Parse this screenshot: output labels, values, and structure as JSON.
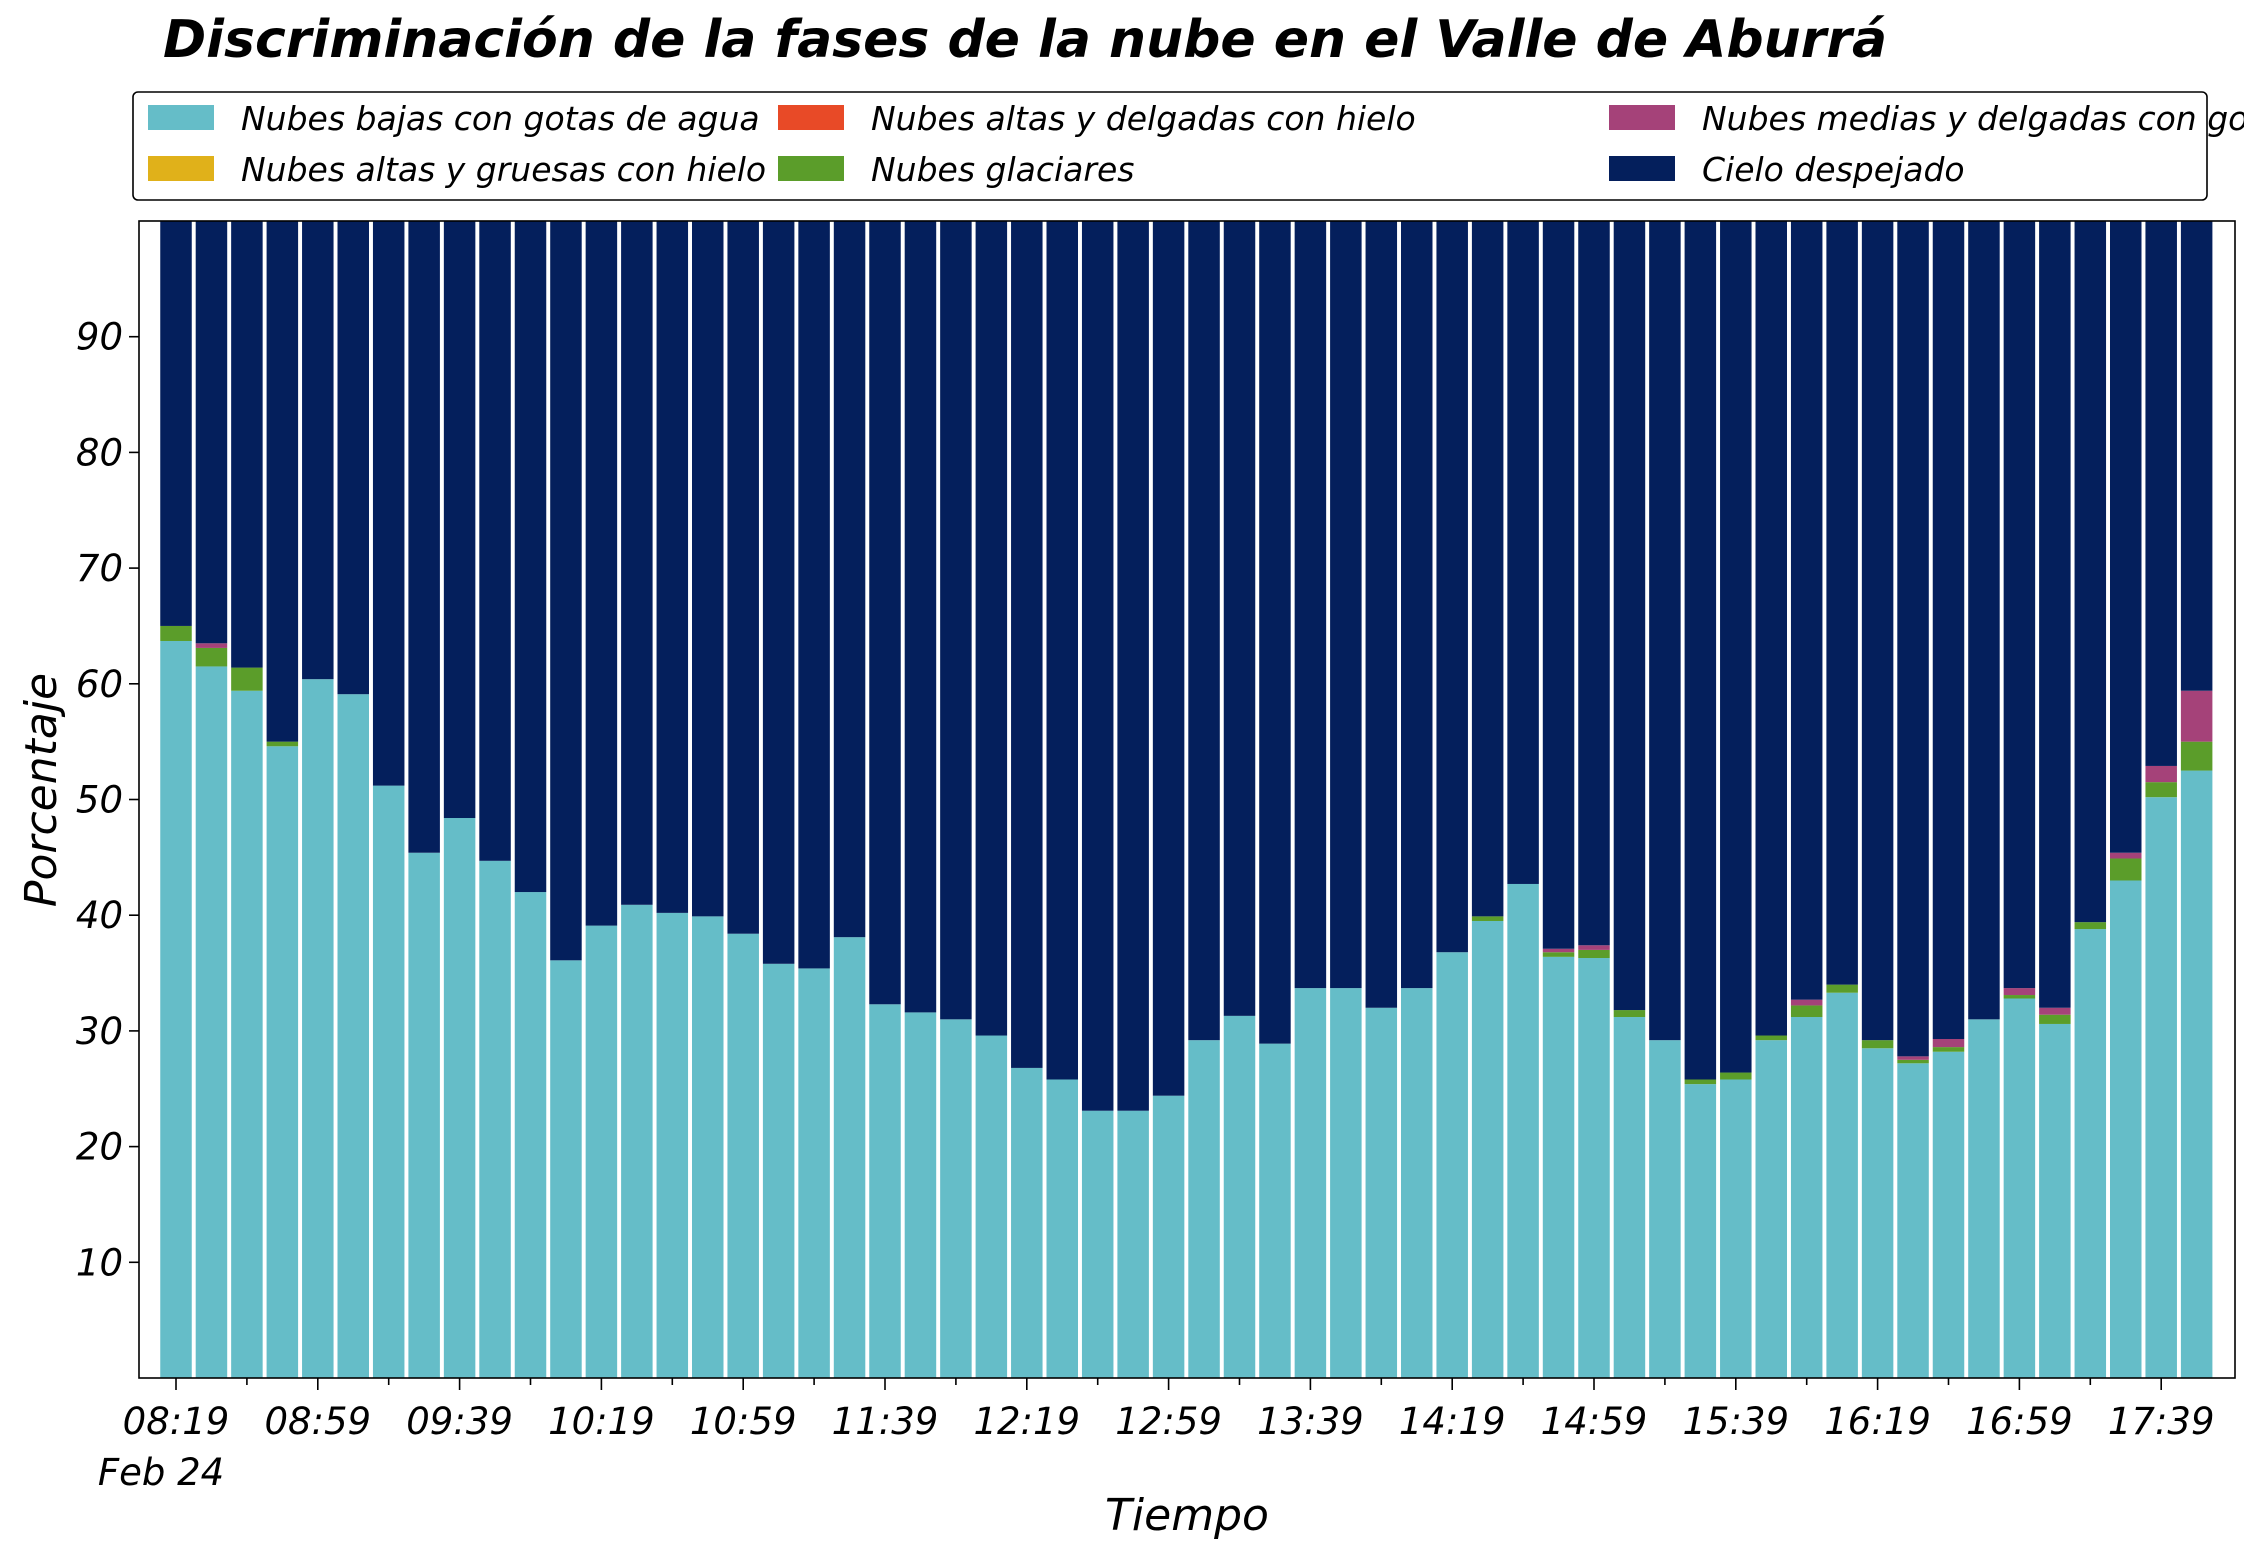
{
  "chart_data": {
    "type": "bar",
    "stacked": true,
    "title": "Discriminación de la fases de la nube en el Valle de Aburrá",
    "xlabel": "Tiempo",
    "ylabel": "Porcentaje",
    "ylim": [
      0,
      100
    ],
    "yticks": [
      10,
      20,
      30,
      40,
      50,
      60,
      70,
      80,
      90
    ],
    "grid": false,
    "legend_position": "top",
    "x_tick_labels": [
      "08:19",
      "08:59",
      "09:39",
      "10:19",
      "10:59",
      "11:39",
      "12:19",
      "12:59",
      "13:39",
      "14:19",
      "14:59",
      "15:39",
      "16:19",
      "16:59",
      "17:39"
    ],
    "x_date_label": "Feb 24",
    "categories": [
      "08:19",
      "08:29",
      "08:39",
      "08:49",
      "08:59",
      "09:09",
      "09:19",
      "09:29",
      "09:39",
      "09:49",
      "09:59",
      "10:09",
      "10:19",
      "10:29",
      "10:39",
      "10:49",
      "10:59",
      "11:09",
      "11:19",
      "11:29",
      "11:39",
      "11:49",
      "11:59",
      "12:09",
      "12:19",
      "12:29",
      "12:39",
      "12:49",
      "12:59",
      "13:09",
      "13:19",
      "13:29",
      "13:39",
      "13:49",
      "13:59",
      "14:09",
      "14:19",
      "14:29",
      "14:39",
      "14:49",
      "14:59",
      "15:09",
      "15:19",
      "15:29",
      "15:39",
      "15:49",
      "15:59",
      "16:09",
      "16:19",
      "16:29",
      "16:39",
      "16:49",
      "16:59",
      "17:09",
      "17:19",
      "17:29",
      "17:39",
      "17:49"
    ],
    "series": [
      {
        "name": "Nubes bajas con gotas de agua",
        "color": "#65bdc8",
        "values": [
          63.7,
          61.5,
          59.4,
          54.6,
          60.4,
          59.1,
          51.2,
          45.4,
          48.4,
          44.7,
          42.0,
          36.1,
          39.1,
          40.9,
          40.2,
          39.9,
          38.4,
          35.8,
          35.4,
          38.1,
          32.3,
          31.6,
          31.0,
          29.6,
          26.8,
          25.8,
          23.1,
          23.1,
          24.4,
          29.2,
          31.3,
          28.9,
          33.7,
          33.7,
          32.0,
          33.7,
          36.8,
          39.5,
          42.7,
          36.4,
          36.3,
          31.2,
          29.2,
          25.4,
          25.8,
          29.2,
          31.2,
          33.3,
          28.5,
          27.2,
          28.2,
          31.0,
          32.8,
          30.6,
          38.8,
          43.0,
          50.2,
          52.5
        ]
      },
      {
        "name": "Nubes glaciares",
        "color": "#5b9d2a",
        "values": [
          1.3,
          1.6,
          2.0,
          0.4,
          0,
          0,
          0,
          0,
          0,
          0,
          0,
          0,
          0,
          0,
          0,
          0,
          0,
          0,
          0,
          0,
          0,
          0,
          0,
          0,
          0,
          0,
          0,
          0,
          0,
          0,
          0,
          0,
          0,
          0,
          0,
          0,
          0,
          0.4,
          0,
          0.4,
          0.7,
          0.6,
          0,
          0.4,
          0.6,
          0.4,
          1.0,
          0.7,
          0.7,
          0.3,
          0.4,
          0,
          0.3,
          0.8,
          0.6,
          1.9,
          1.3,
          2.5
        ]
      },
      {
        "name": "Nubes altas y gruesas con hielo",
        "color": "#e0b11a",
        "values": [
          0,
          0,
          0,
          0,
          0,
          0,
          0,
          0,
          0,
          0,
          0,
          0,
          0,
          0,
          0,
          0,
          0,
          0,
          0,
          0,
          0,
          0,
          0,
          0,
          0,
          0,
          0,
          0,
          0,
          0,
          0,
          0,
          0,
          0,
          0,
          0,
          0,
          0,
          0,
          0,
          0,
          0,
          0,
          0,
          0,
          0,
          0,
          0,
          0,
          0,
          0,
          0,
          0,
          0,
          0,
          0,
          0,
          0
        ]
      },
      {
        "name": "Nubes medias y delgadas con gotas de agua",
        "color": "#a54279",
        "values": [
          0,
          0.4,
          0,
          0,
          0,
          0,
          0,
          0,
          0,
          0,
          0,
          0,
          0,
          0,
          0,
          0,
          0,
          0,
          0,
          0,
          0,
          0,
          0,
          0,
          0,
          0,
          0,
          0,
          0,
          0,
          0,
          0,
          0,
          0,
          0,
          0,
          0,
          0,
          0,
          0.3,
          0.4,
          0,
          0,
          0,
          0,
          0,
          0.5,
          0,
          0,
          0.3,
          0.7,
          0,
          0.6,
          0.6,
          0,
          0.5,
          1.4,
          4.4
        ]
      },
      {
        "name": "Nubes altas y delgadas con hielo",
        "color": "#e84a27",
        "values": [
          0,
          0,
          0,
          0,
          0,
          0,
          0,
          0,
          0,
          0,
          0,
          0,
          0,
          0,
          0,
          0,
          0,
          0,
          0,
          0,
          0,
          0,
          0,
          0,
          0,
          0,
          0,
          0,
          0,
          0,
          0,
          0,
          0,
          0,
          0,
          0,
          0,
          0,
          0,
          0,
          0,
          0,
          0,
          0,
          0,
          0,
          0,
          0,
          0,
          0,
          0,
          0,
          0,
          0,
          0,
          0,
          0,
          0
        ]
      },
      {
        "name": "Cielo despejado",
        "color": "#041f5c",
        "values": [
          35.0,
          36.5,
          38.6,
          45.0,
          39.6,
          40.9,
          48.8,
          54.6,
          51.6,
          55.3,
          58.0,
          63.9,
          60.9,
          59.1,
          59.8,
          60.1,
          61.6,
          64.2,
          64.6,
          61.9,
          67.7,
          68.4,
          69.0,
          70.4,
          73.2,
          74.2,
          76.9,
          76.9,
          75.6,
          70.8,
          68.7,
          71.1,
          66.3,
          66.3,
          68.0,
          66.3,
          63.2,
          60.1,
          57.3,
          62.9,
          62.6,
          68.2,
          70.8,
          74.2,
          73.6,
          70.4,
          67.3,
          66.0,
          70.8,
          72.2,
          70.7,
          69.0,
          66.3,
          68.0,
          60.6,
          54.6,
          47.1,
          40.6
        ]
      }
    ],
    "legend_order": [
      "Nubes bajas con gotas de agua",
      "Nubes altas y gruesas con hielo",
      "Nubes altas y delgadas con hielo",
      "Nubes glaciares",
      "Nubes medias y delgadas con gotas de agua",
      "Cielo despejado"
    ]
  }
}
